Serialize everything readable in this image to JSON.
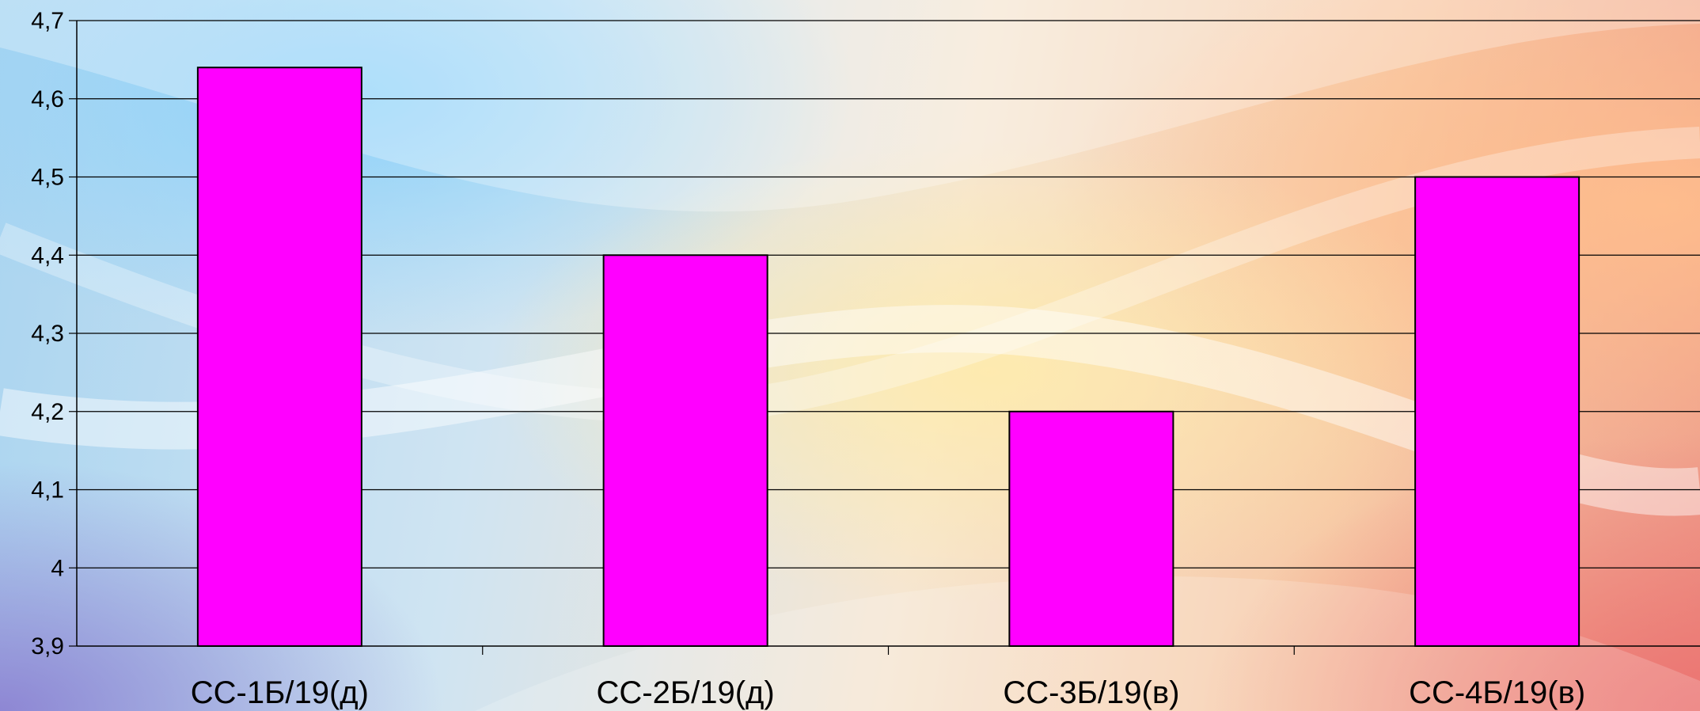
{
  "chart_data": {
    "type": "bar",
    "categories": [
      "СС-1Б/19(д)",
      "СС-2Б/19(д)",
      "СС-3Б/19(в)",
      "СС-4Б/19(в)"
    ],
    "values": [
      4.64,
      4.4,
      4.2,
      4.5
    ],
    "y_ticks": [
      "3,9",
      "4",
      "4,1",
      "4,2",
      "4,3",
      "4,4",
      "4,5",
      "4,6",
      "4,7"
    ],
    "ylim": [
      3.9,
      4.7
    ],
    "y_step": 0.1,
    "grid": true,
    "legend": "none",
    "bar_color": "#ff00ff",
    "bar_outline_color": "#000000"
  }
}
